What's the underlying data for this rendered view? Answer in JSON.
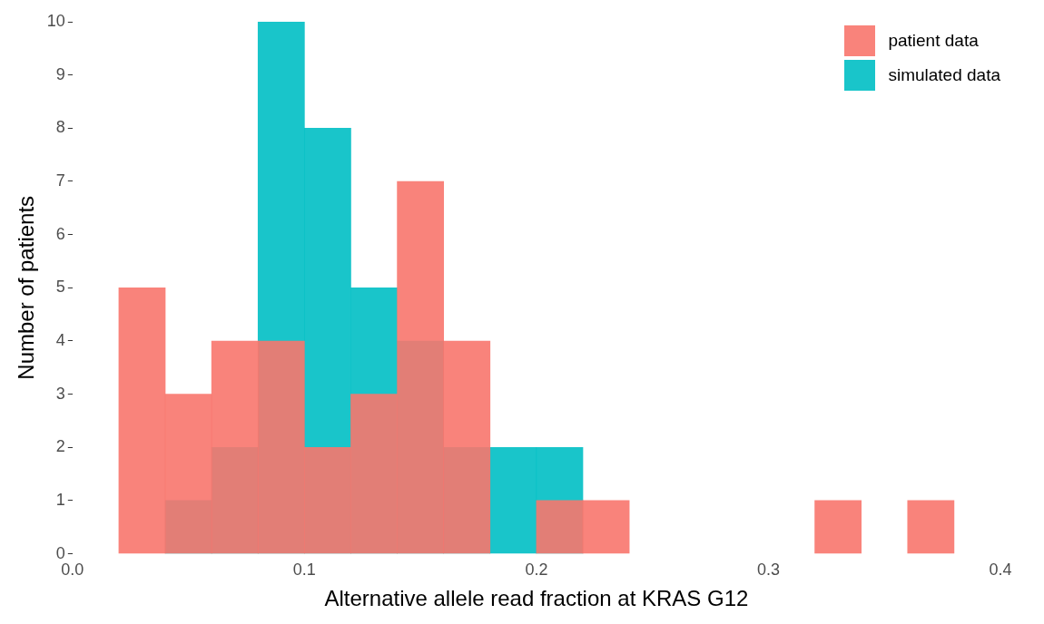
{
  "chart_data": {
    "type": "histogram",
    "xlabel": "Alternative allele read fraction at KRAS G12",
    "ylabel": "Number of patients",
    "bins": [
      0.02,
      0.04,
      0.06,
      0.08,
      0.1,
      0.12,
      0.14,
      0.16,
      0.18,
      0.2,
      0.22,
      0.24,
      0.26,
      0.28,
      0.3,
      0.32,
      0.34,
      0.36,
      0.38
    ],
    "series": [
      {
        "name": "patient data",
        "color": "#f8766d",
        "values": [
          5,
          3,
          4,
          4,
          2,
          3,
          7,
          4,
          0,
          1,
          1,
          0,
          0,
          0,
          0,
          1,
          0,
          1
        ]
      },
      {
        "name": "simulated data",
        "color": "#00bfc4",
        "values": [
          0,
          1,
          2,
          10,
          8,
          5,
          4,
          2,
          2,
          2,
          0,
          0,
          0,
          0,
          0,
          0,
          0,
          0
        ]
      }
    ],
    "xlim": [
      0,
      0.4
    ],
    "xticks": [
      {
        "value": 0,
        "label": "0.0"
      },
      0.1,
      0.2,
      0.3,
      0.4
    ],
    "ylim": [
      0,
      10
    ],
    "yticks": [
      0,
      1,
      2,
      3,
      4,
      5,
      6,
      7,
      8,
      9,
      10
    ],
    "grid": false,
    "legend": "top right"
  }
}
